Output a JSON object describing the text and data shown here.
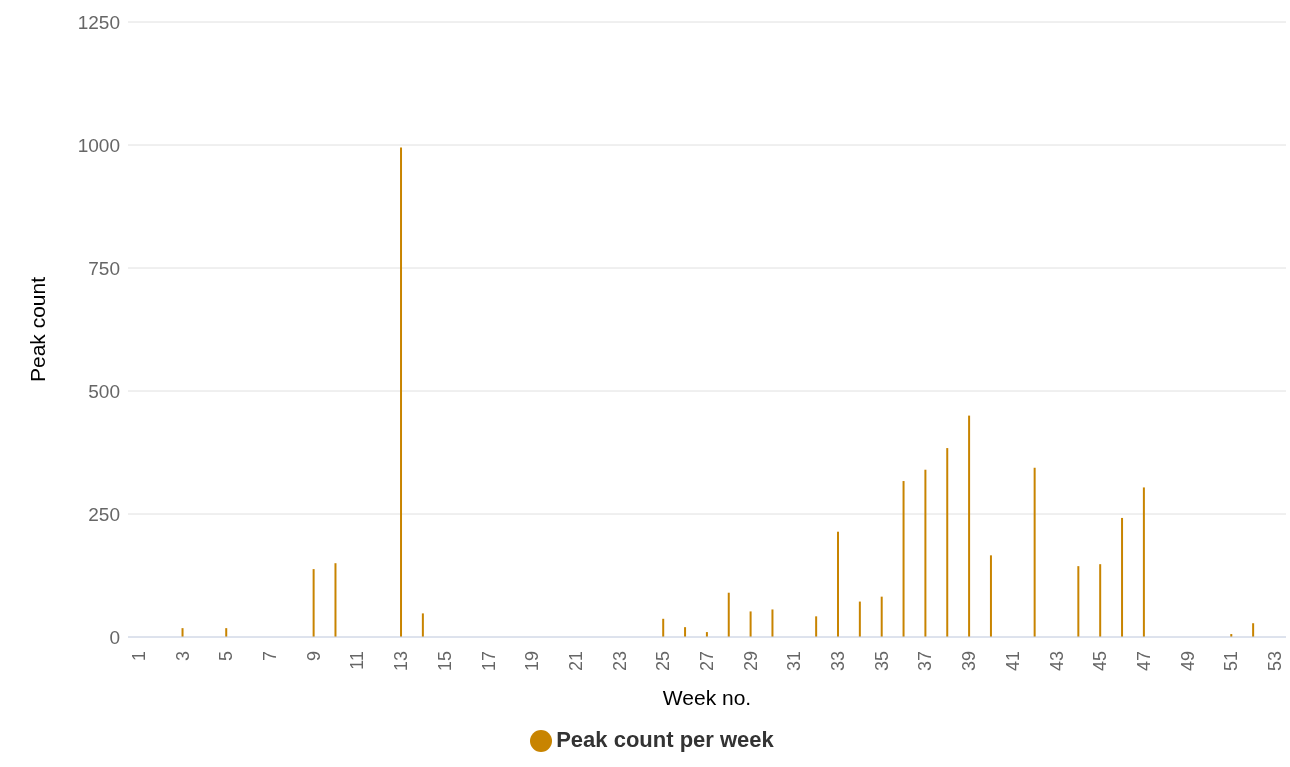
{
  "chart_data": {
    "type": "bar",
    "xlabel": "Week no.",
    "ylabel": "Peak count",
    "categories": [
      "1",
      null,
      "3",
      null,
      "5",
      null,
      "7",
      null,
      "9",
      null,
      "11",
      null,
      "13",
      null,
      "15",
      null,
      "17",
      null,
      "19",
      null,
      "21",
      null,
      "23",
      null,
      "25",
      null,
      "27",
      null,
      "29",
      null,
      "31",
      null,
      "33",
      null,
      "35",
      null,
      "37",
      null,
      "39",
      null,
      "41",
      null,
      "43",
      null,
      "45",
      null,
      "47",
      null,
      "49",
      null,
      "51",
      null,
      "53"
    ],
    "series": [
      {
        "name": "Peak count per week",
        "color": "#c88400",
        "values": [
          0,
          0,
          18,
          0,
          18,
          0,
          0,
          0,
          138,
          150,
          0,
          0,
          995,
          48,
          0,
          0,
          0,
          0,
          0,
          0,
          0,
          0,
          0,
          0,
          37,
          20,
          10,
          90,
          52,
          56,
          0,
          42,
          214,
          72,
          82,
          317,
          340,
          384,
          450,
          166,
          0,
          344,
          0,
          144,
          148,
          242,
          304,
          0,
          0,
          0,
          6,
          28,
          0
        ]
      }
    ],
    "ylim": [
      0,
      1250
    ],
    "yticks": [
      0,
      250,
      500,
      750,
      1000,
      1250
    ],
    "grid": "y",
    "legend": "bottom"
  }
}
